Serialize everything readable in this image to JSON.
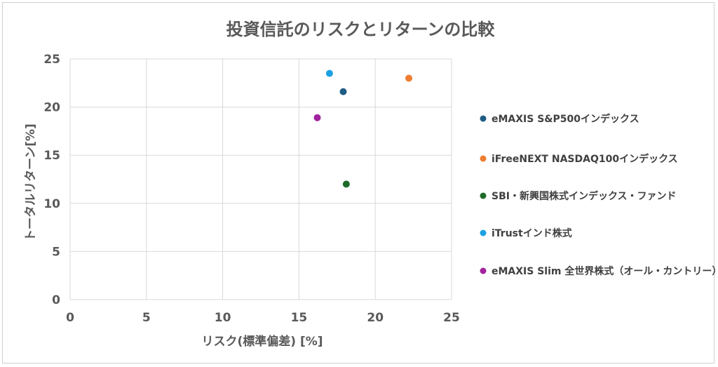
{
  "chart_data": {
    "type": "scatter",
    "title": "投資信託のリスクとリターンの比較",
    "xlabel": "リスク(標準偏差) [%]",
    "ylabel": "トータルリターン[%]",
    "xlim": [
      0,
      25
    ],
    "ylim": [
      0,
      25
    ],
    "xticks": [
      0,
      5,
      10,
      15,
      20,
      25
    ],
    "yticks": [
      0,
      5,
      10,
      15,
      20,
      25
    ],
    "grid": true,
    "legend_position": "right",
    "series": [
      {
        "name": "eMAXIS S&P500インデックス",
        "color": "#1f5c86",
        "x": 17.9,
        "y": 21.6
      },
      {
        "name": "iFreeNEXT NASDAQ100インデックス",
        "color": "#ed7d31",
        "x": 22.2,
        "y": 23.0
      },
      {
        "name": "SBI・新興国株式インデックス・ファンド",
        "color": "#1e6b28",
        "x": 18.1,
        "y": 12.0
      },
      {
        "name": "iTrustインド株式",
        "color": "#1ba1e2",
        "x": 17.0,
        "y": 23.5
      },
      {
        "name": "eMAXIS Slim 全世界株式（オール・カントリー）",
        "color": "#a2229f",
        "x": 16.2,
        "y": 18.9
      }
    ]
  }
}
